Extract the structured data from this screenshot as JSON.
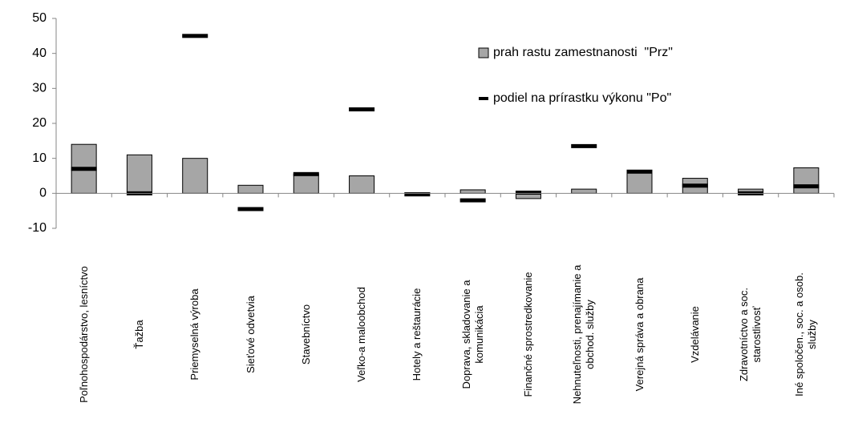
{
  "chart_data": {
    "type": "bar",
    "categories": [
      "Poľnohospodárstvo,  lesníctvo",
      "Ťažba",
      "Priemyselná výroba",
      "Sieťové odvetvia",
      "Stavebníctvo",
      "Veľko-a maloobchod",
      "Hotely a reštaurácie",
      "Doprava, skladovanie a\nkomunikácia",
      "Finančné sprostredkovanie",
      "Nehnuteľnosti, prenajímanie a\nobchod. služby",
      "Verejná správa a obrana",
      "Vzdelávanie",
      "Zdravotníctvo a soc.\nstarostlivosť",
      "Iné spoločen., soc. a osob.\nslužby"
    ],
    "series": [
      {
        "name": "prah rastu zamestnanosti  \"Prz\"",
        "type": "bar",
        "color": "#a6a6a6",
        "values": [
          14,
          11,
          10,
          2.3,
          5.5,
          5,
          0.2,
          1,
          -1.5,
          1.2,
          6.5,
          4.3,
          1.2,
          7.3
        ]
      },
      {
        "name": "podiel na prírastku výkonu \"Po\"",
        "type": "marker",
        "color": "#000000",
        "values": [
          7,
          0,
          45,
          -4.5,
          5.5,
          24,
          -0.3,
          -2,
          0.2,
          13.5,
          6.2,
          2.2,
          0,
          2
        ]
      }
    ],
    "ylim": [
      -10,
      50
    ],
    "yticks": [
      -10,
      0,
      10,
      20,
      30,
      40,
      50
    ],
    "grid": false,
    "legend": "upper right"
  }
}
